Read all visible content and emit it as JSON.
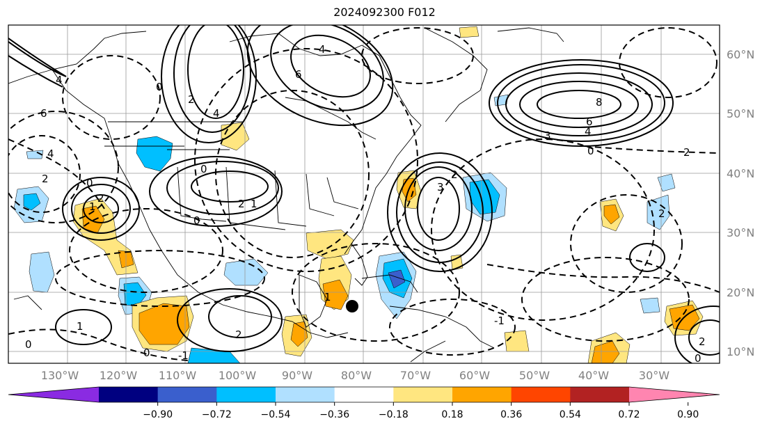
{
  "title": "2024092300 F012",
  "map": {
    "longitude_labels": [
      "130°W",
      "120°W",
      "110°W",
      "100°W",
      "90°W",
      "80°W",
      "70°W",
      "60°W",
      "50°W",
      "40°W",
      "30°W"
    ],
    "latitude_labels": [
      "60°N",
      "50°N",
      "40°N",
      "30°N",
      "20°N",
      "10°N"
    ],
    "contour_labels": [
      {
        "text": "6"
      },
      {
        "text": "4"
      },
      {
        "text": "2"
      },
      {
        "text": "0"
      },
      {
        "text": "2"
      },
      {
        "text": "4"
      },
      {
        "text": "6"
      },
      {
        "text": "8"
      },
      {
        "text": "6"
      },
      {
        "text": "4"
      },
      {
        "text": "3"
      },
      {
        "text": "0"
      },
      {
        "text": "2"
      },
      {
        "text": "3"
      },
      {
        "text": "2"
      },
      {
        "text": "0"
      },
      {
        "text": "2"
      },
      {
        "text": "1"
      },
      {
        "text": "0"
      },
      {
        "text": "1"
      },
      {
        "text": "2"
      },
      {
        "text": "0"
      },
      {
        "text": "1"
      },
      {
        "text": "2"
      },
      {
        "text": "0"
      },
      {
        "text": "-1"
      },
      {
        "text": "1"
      },
      {
        "text": "-1"
      },
      {
        "text": "2"
      },
      {
        "text": "0"
      },
      {
        "text": "4"
      },
      {
        "text": "0"
      },
      {
        "text": "2"
      },
      {
        "text": "4"
      }
    ]
  },
  "colorbar": {
    "colors": [
      "#8a2be2",
      "#000080",
      "#3a5fcd",
      "#00bfff",
      "#b0e0ff",
      "#ffffff",
      "#ffe680",
      "#ffa500",
      "#ff4500",
      "#b22222",
      "#ff85b0"
    ],
    "labels": [
      "−0.90",
      "−0.72",
      "−0.54",
      "−0.36",
      "−0.18",
      "0.18",
      "0.36",
      "0.54",
      "0.72",
      "0.90"
    ]
  }
}
